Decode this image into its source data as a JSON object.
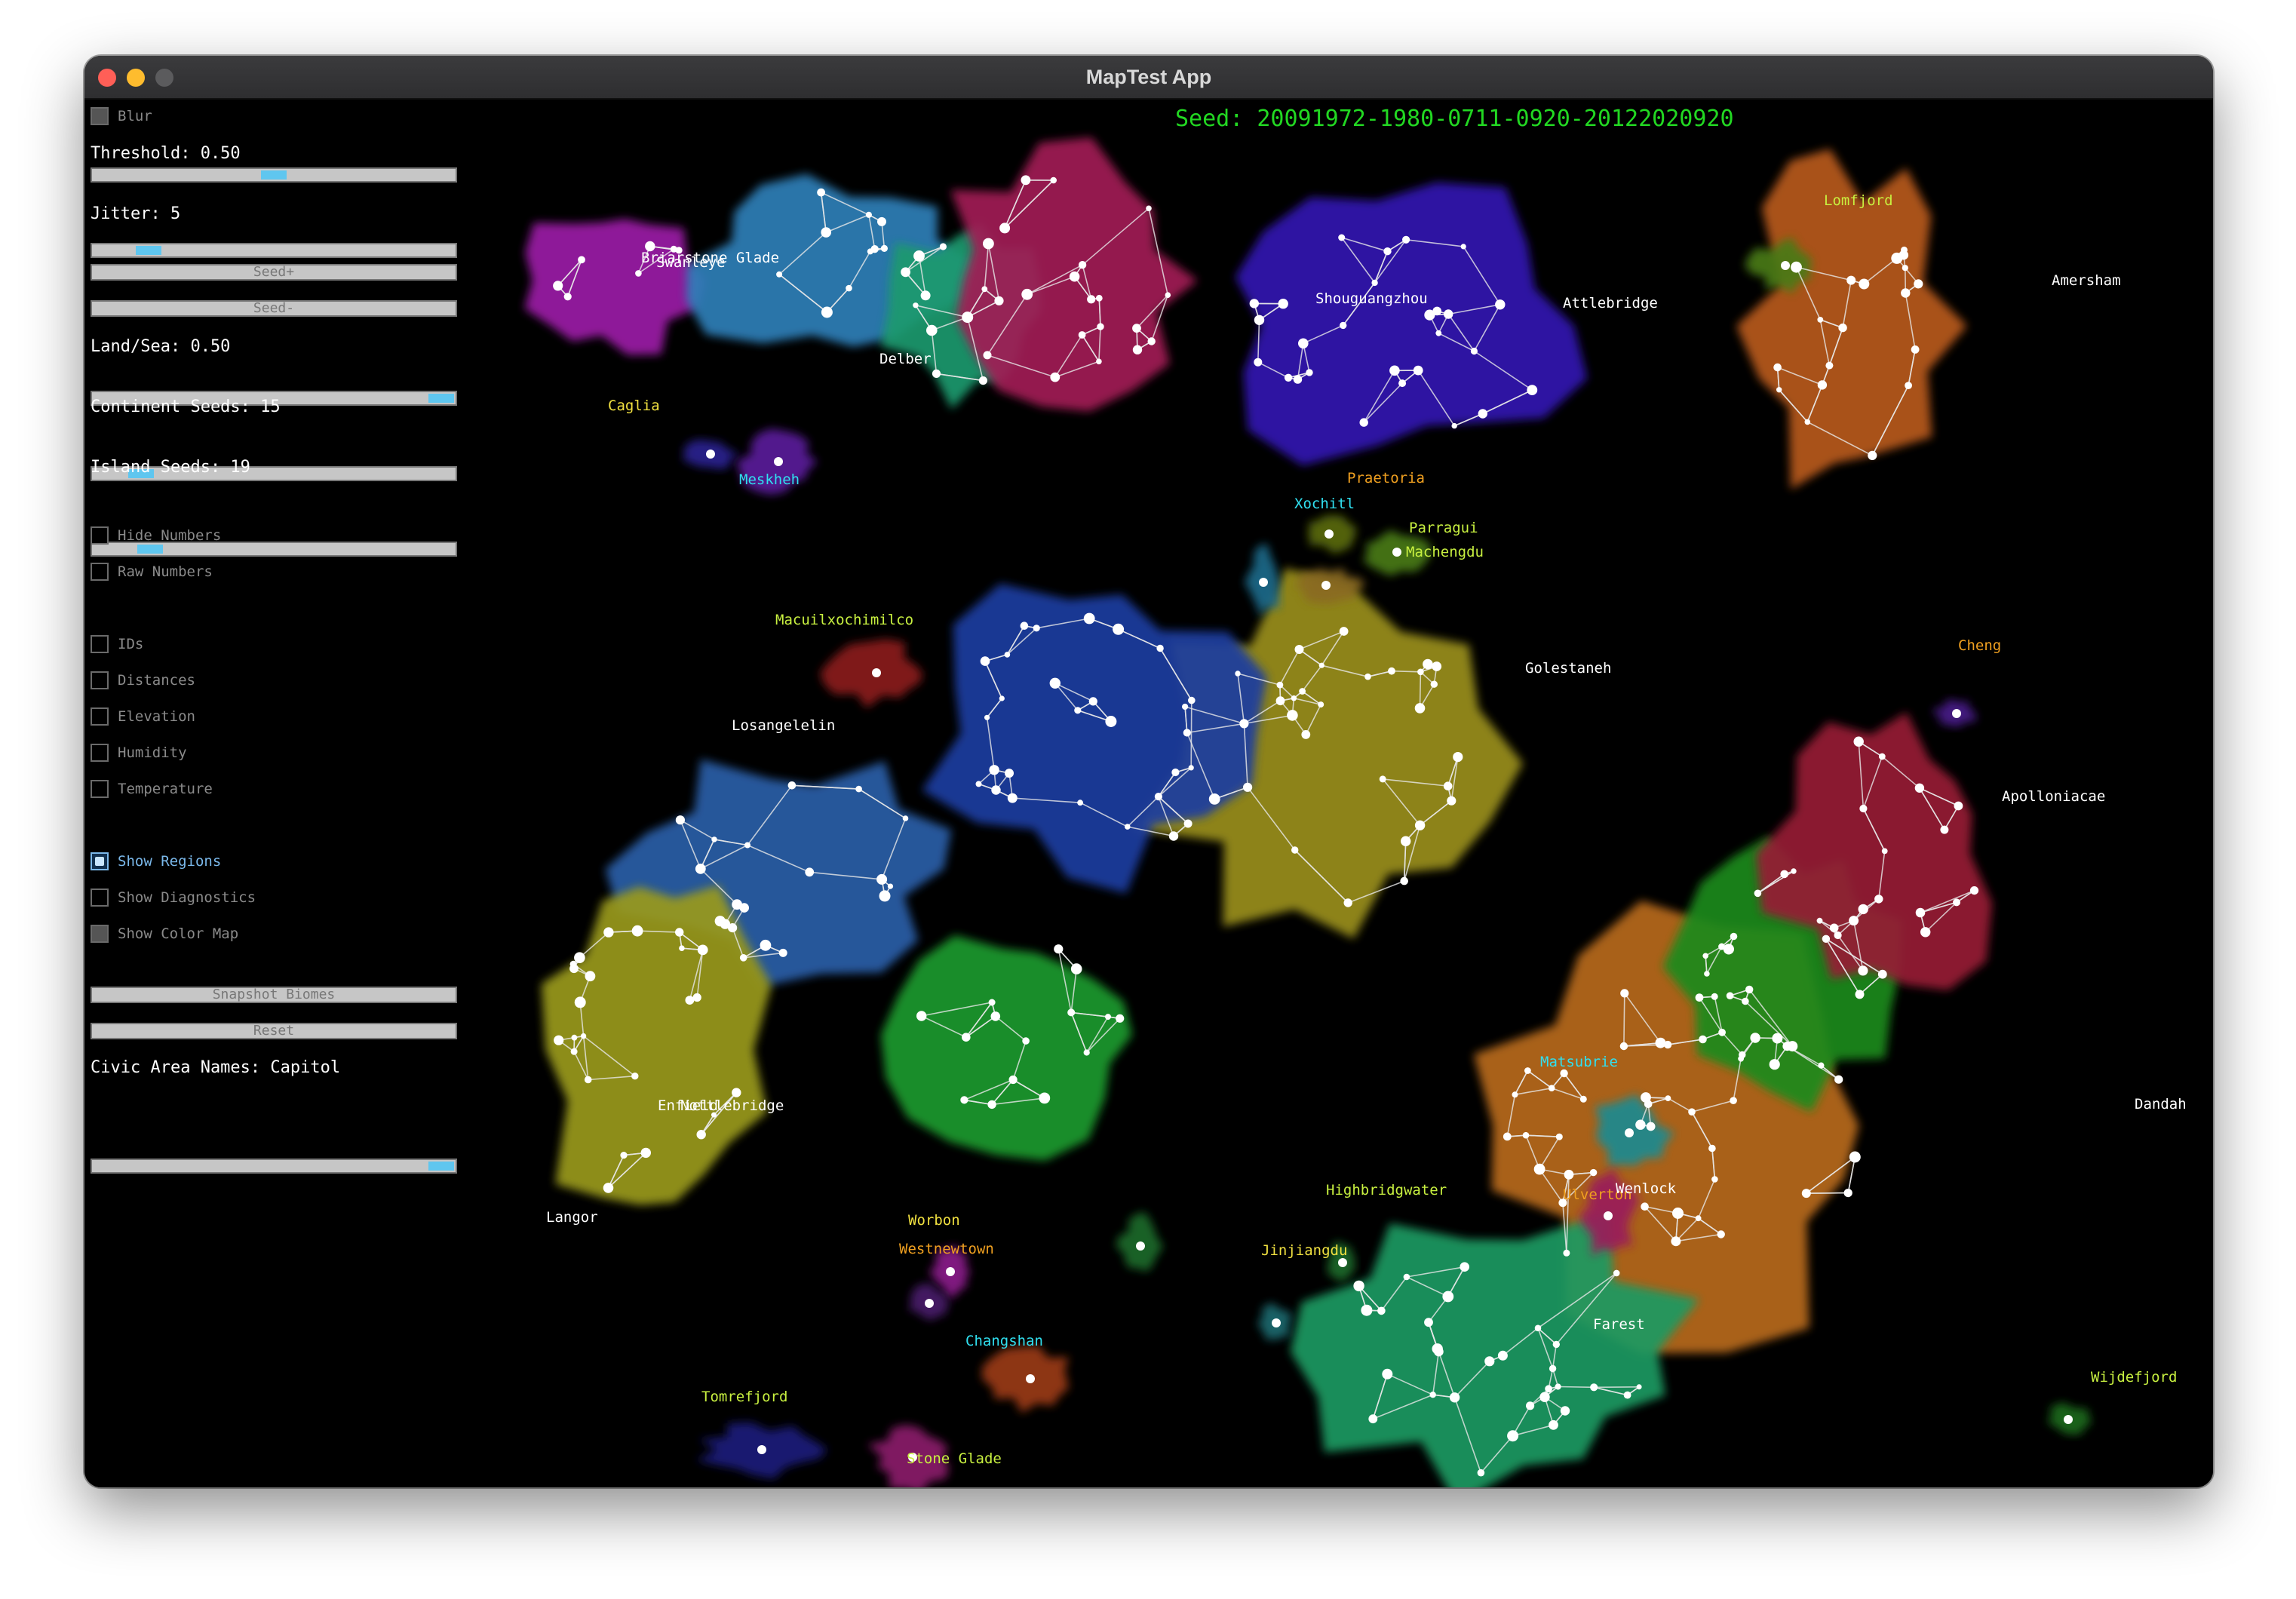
{
  "window": {
    "title": "MapTest App"
  },
  "panel": {
    "blur_label": "Blur",
    "threshold_label": "Threshold: 0.50",
    "threshold_value": 0.5,
    "jitter_label": "Jitter: 5",
    "seed_plus_label": "Seed+",
    "seed_minus_label": "Seed-",
    "land_sea_label": "Land/Sea: 0.50",
    "land_sea_value": 0.5,
    "continent_seeds_label": "Continent Seeds: 15",
    "island_seeds_label": "Island Seeds: 19",
    "hide_numbers_label": "Hide Numbers",
    "raw_numbers_label": "Raw Numbers",
    "ids_label": "IDs",
    "distances_label": "Distances",
    "elevation_label": "Elevation",
    "humidity_label": "Humidity",
    "temperature_label": "Temperature",
    "show_regions_label": "Show Regions",
    "show_regions_checked": true,
    "show_diagnostics_label": "Show Diagnostics",
    "show_color_map_label": "Show Color Map",
    "snapshot_label": "Snapshot Biomes",
    "reset_label": "Reset",
    "civic_label": "Civic Area Names: Capitol"
  },
  "map": {
    "seed_text": "Seed: 20091972-1980-0711-0920-20122020920",
    "place_names": [
      {
        "name": "Swanleye",
        "color": "#ffffff"
      },
      {
        "name": "Briarstone Glade",
        "color": "#ffffff"
      },
      {
        "name": "Delber",
        "color": "#ffffff"
      },
      {
        "name": "Shouguangzhou",
        "color": "#ffffff"
      },
      {
        "name": "Lomfjord",
        "color": "#c8f040"
      },
      {
        "name": "Attlebridge",
        "color": "#ffffff"
      },
      {
        "name": "Amersham",
        "color": "#ffffff"
      },
      {
        "name": "Caglia",
        "color": "#f0e040"
      },
      {
        "name": "Meskheh",
        "color": "#30e0f0"
      },
      {
        "name": "Xochitl",
        "color": "#30e0f0"
      },
      {
        "name": "Praetoria",
        "color": "#f0a020"
      },
      {
        "name": "Parragui",
        "color": "#c8f040"
      },
      {
        "name": "Machengdu",
        "color": "#c8f040"
      },
      {
        "name": "Macuilxochimilco",
        "color": "#c8f040"
      },
      {
        "name": "Golestaneh",
        "color": "#ffffff"
      },
      {
        "name": "Cheng",
        "color": "#f0a020"
      },
      {
        "name": "Losangelelin",
        "color": "#ffffff"
      },
      {
        "name": "Apolloniacae",
        "color": "#ffffff"
      },
      {
        "name": "Matsubrie",
        "color": "#30e0f0"
      },
      {
        "name": "Dandah",
        "color": "#ffffff"
      },
      {
        "name": "Nottlebridge",
        "color": "#ffffff"
      },
      {
        "name": "Enfield",
        "color": "#ffffff"
      },
      {
        "name": "Highbridgwater",
        "color": "#c8f040"
      },
      {
        "name": "Ulverton",
        "color": "#f0a020"
      },
      {
        "name": "Wenlock",
        "color": "#ffffff"
      },
      {
        "name": "Langor",
        "color": "#ffffff"
      },
      {
        "name": "Worbon",
        "color": "#f0e040"
      },
      {
        "name": "Westnewtown",
        "color": "#f0a020"
      },
      {
        "name": "Jinjiangdu",
        "color": "#f0e040"
      },
      {
        "name": "Changshan",
        "color": "#30e0f0"
      },
      {
        "name": "Tomrefjord",
        "color": "#c8f040"
      },
      {
        "name": "Stone Glade",
        "color": "#c8f040"
      },
      {
        "name": "Farest",
        "color": "#ffffff"
      },
      {
        "name": "Wijdefjord",
        "color": "#c8f040"
      }
    ]
  }
}
